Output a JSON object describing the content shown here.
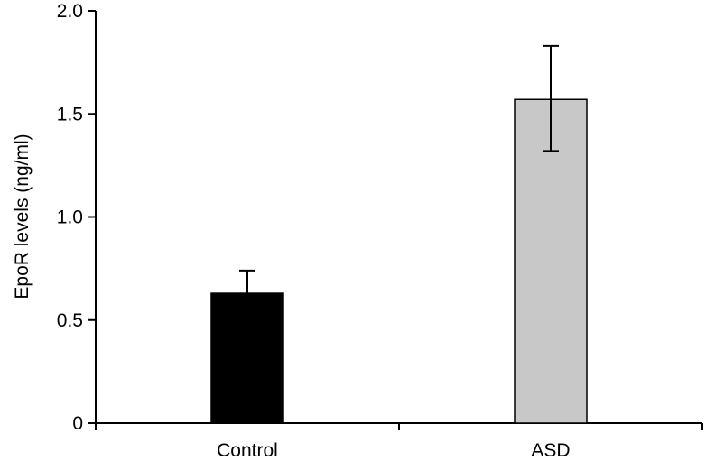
{
  "chart_data": {
    "type": "bar",
    "title": "",
    "xlabel": "",
    "ylabel": "EpoR levels (ng/ml)",
    "categories": [
      "Control",
      "ASD"
    ],
    "values": [
      0.63,
      1.57
    ],
    "error_upper": [
      0.74,
      1.83
    ],
    "error_lower": [
      0.63,
      1.32
    ],
    "ylim": [
      0,
      2.0
    ],
    "yticks": [
      0,
      0.5,
      1.0,
      1.5,
      2.0
    ],
    "ytick_labels": [
      "0",
      "0.5",
      "1.0",
      "1.5",
      "2.0"
    ],
    "bar_colors": [
      "#000000",
      "#c8c8c8"
    ],
    "grid": false,
    "legend": "none"
  }
}
